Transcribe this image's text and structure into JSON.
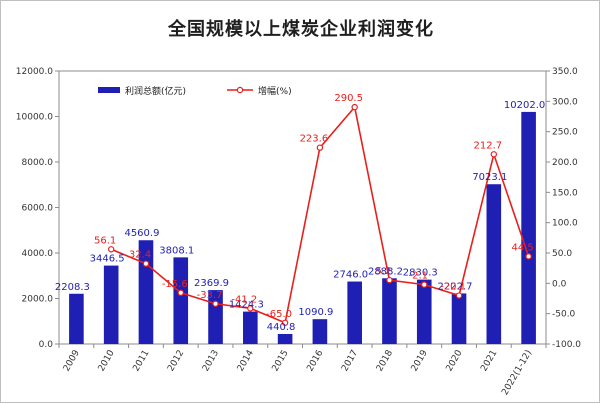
{
  "chart_data": {
    "type": "bar",
    "title": "全国规模以上煤炭企业利润变化",
    "categories": [
      "2009",
      "2010",
      "2011",
      "2012",
      "2013",
      "2014",
      "2015",
      "2016",
      "2017",
      "2018",
      "2019",
      "2020",
      "2021",
      "2022(1-12)"
    ],
    "series": [
      {
        "name": "利润总额(亿元)",
        "type": "bar",
        "axis": "left",
        "color": "#1f1fb4",
        "label_color": "#1f1fb4",
        "values": [
          2208.3,
          3446.5,
          4560.9,
          3808.1,
          2369.9,
          1424.3,
          440.8,
          1090.9,
          2746.0,
          2888.2,
          2830.3,
          2222.7,
          7023.1,
          10202.0
        ],
        "labels": [
          "2208.3",
          "3446.5",
          "4560.9",
          "3808.1",
          "2369.9",
          "1424.3",
          "440.8",
          "1090.9",
          "2746.0",
          "2888.2",
          "2830.3",
          "2222.7",
          "7023.1",
          "10202.0"
        ]
      },
      {
        "name": "增幅(%)",
        "type": "line",
        "axis": "right",
        "color": "#e8201c",
        "label_color": "#e8201c",
        "values": [
          null,
          56.1,
          32.4,
          -15.6,
          -33.7,
          -41.2,
          -65.0,
          223.6,
          290.5,
          5.2,
          -2.1,
          -20.1,
          212.7,
          44.5
        ],
        "labels": [
          "",
          "56.1",
          "32.4",
          "-15.6",
          "-33.7",
          "-41.2",
          "-65.0",
          "223.6",
          "290.5",
          "5.2",
          "-2.1",
          "-20.1",
          "212.7",
          "44.5"
        ]
      }
    ],
    "y_left": {
      "min": 0,
      "max": 12000,
      "step": 2000,
      "ticks": [
        "0.0",
        "2000.0",
        "4000.0",
        "6000.0",
        "8000.0",
        "10000.0",
        "12000.0"
      ]
    },
    "y_right": {
      "min": -100,
      "max": 350,
      "step": 50,
      "ticks": [
        "-100.0",
        "-50.0",
        "0.0",
        "50.0",
        "100.0",
        "150.0",
        "200.0",
        "250.0",
        "300.0",
        "350.0"
      ]
    },
    "grid": false,
    "legend": "top-left"
  }
}
